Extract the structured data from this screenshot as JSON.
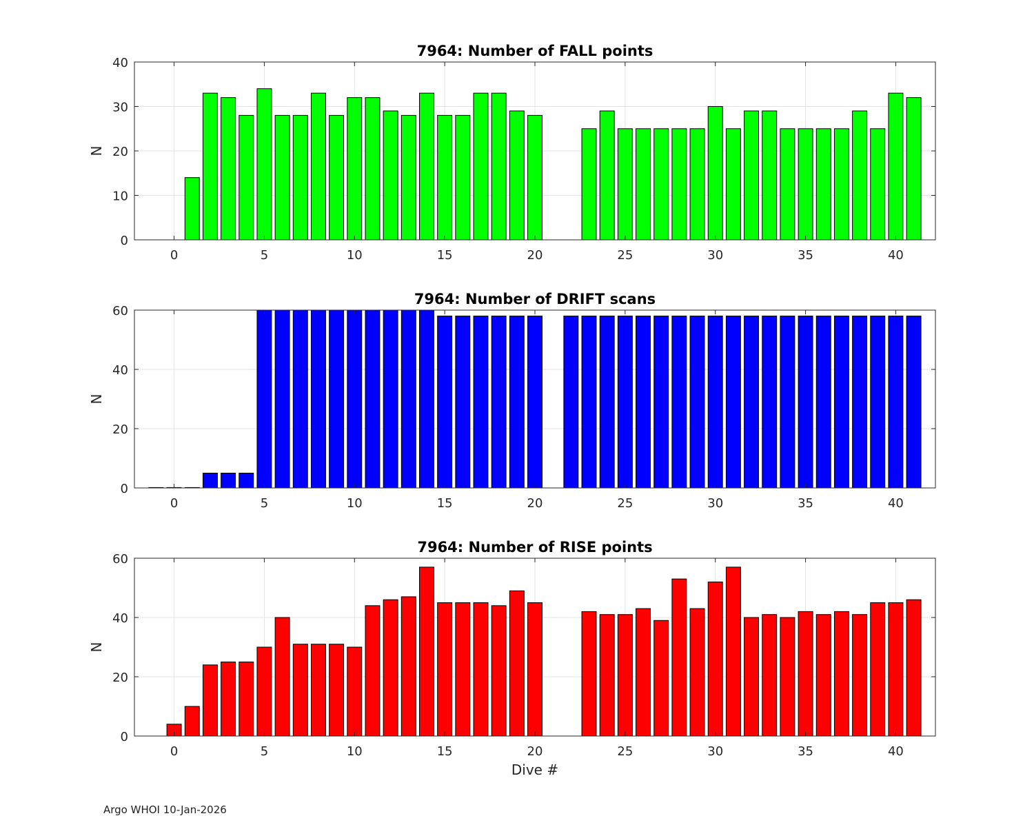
{
  "footer": "Argo WHOI 10-Jan-2026",
  "colors": {
    "fall": "#00ff00",
    "drift": "#0000ff",
    "rise": "#ff0000",
    "grid": "#e3e3e3",
    "axis": "#262626"
  },
  "chart_data": [
    {
      "type": "bar",
      "title": "7964: Number of FALL points",
      "xlabel": "",
      "ylabel": "N",
      "xlim": [
        -2.2,
        42.2
      ],
      "ylim": [
        0,
        40
      ],
      "xticks": [
        0,
        5,
        10,
        15,
        20,
        25,
        30,
        35,
        40
      ],
      "yticks": [
        0,
        10,
        20,
        30,
        40
      ],
      "grid": true,
      "x": [
        1,
        2,
        3,
        4,
        5,
        6,
        7,
        8,
        9,
        10,
        11,
        12,
        13,
        14,
        15,
        16,
        17,
        18,
        19,
        20,
        23,
        24,
        25,
        26,
        27,
        28,
        29,
        30,
        31,
        32,
        33,
        34,
        35,
        36,
        37,
        38,
        39,
        40,
        41
      ],
      "values": [
        14,
        33,
        32,
        28,
        34,
        28,
        28,
        33,
        28,
        32,
        32,
        29,
        28,
        33,
        28,
        28,
        33,
        33,
        29,
        28,
        25,
        29,
        25,
        25,
        25,
        25,
        25,
        30,
        25,
        29,
        29,
        25,
        25,
        25,
        25,
        29,
        25,
        33,
        32
      ]
    },
    {
      "type": "bar",
      "title": "7964: Number of DRIFT scans",
      "xlabel": "",
      "ylabel": "N",
      "xlim": [
        -2.2,
        42.2
      ],
      "ylim": [
        0,
        60
      ],
      "xticks": [
        0,
        5,
        10,
        15,
        20,
        25,
        30,
        35,
        40
      ],
      "yticks": [
        0,
        20,
        40,
        60
      ],
      "grid": true,
      "x": [
        -1,
        0,
        1,
        2,
        3,
        4,
        5,
        6,
        7,
        8,
        9,
        10,
        11,
        12,
        13,
        14,
        15,
        16,
        17,
        18,
        19,
        20,
        22,
        23,
        24,
        25,
        26,
        27,
        28,
        29,
        30,
        31,
        32,
        33,
        34,
        35,
        36,
        37,
        38,
        39,
        40,
        41
      ],
      "values": [
        0,
        0,
        0,
        5,
        5,
        5,
        60,
        60,
        60,
        60,
        60,
        60,
        60,
        60,
        60,
        60,
        58,
        58,
        58,
        58,
        58,
        58,
        58,
        58,
        58,
        58,
        58,
        58,
        58,
        58,
        58,
        58,
        58,
        58,
        58,
        58,
        58,
        58,
        58,
        58,
        58,
        58
      ]
    },
    {
      "type": "bar",
      "title": "7964: Number of RISE points",
      "xlabel": "Dive #",
      "ylabel": "N",
      "xlim": [
        -2.2,
        42.2
      ],
      "ylim": [
        0,
        60
      ],
      "xticks": [
        0,
        5,
        10,
        15,
        20,
        25,
        30,
        35,
        40
      ],
      "yticks": [
        0,
        20,
        40,
        60
      ],
      "grid": true,
      "x": [
        0,
        1,
        2,
        3,
        4,
        5,
        6,
        7,
        8,
        9,
        10,
        11,
        12,
        13,
        14,
        15,
        16,
        17,
        18,
        19,
        20,
        23,
        24,
        25,
        26,
        27,
        28,
        29,
        30,
        31,
        32,
        33,
        34,
        35,
        36,
        37,
        38,
        39,
        40,
        41
      ],
      "values": [
        4,
        10,
        24,
        25,
        25,
        30,
        40,
        31,
        31,
        31,
        30,
        44,
        46,
        47,
        57,
        45,
        45,
        45,
        44,
        49,
        45,
        42,
        41,
        41,
        43,
        39,
        53,
        43,
        52,
        57,
        40,
        41,
        40,
        42,
        41,
        42,
        41,
        45,
        45,
        46
      ]
    }
  ]
}
